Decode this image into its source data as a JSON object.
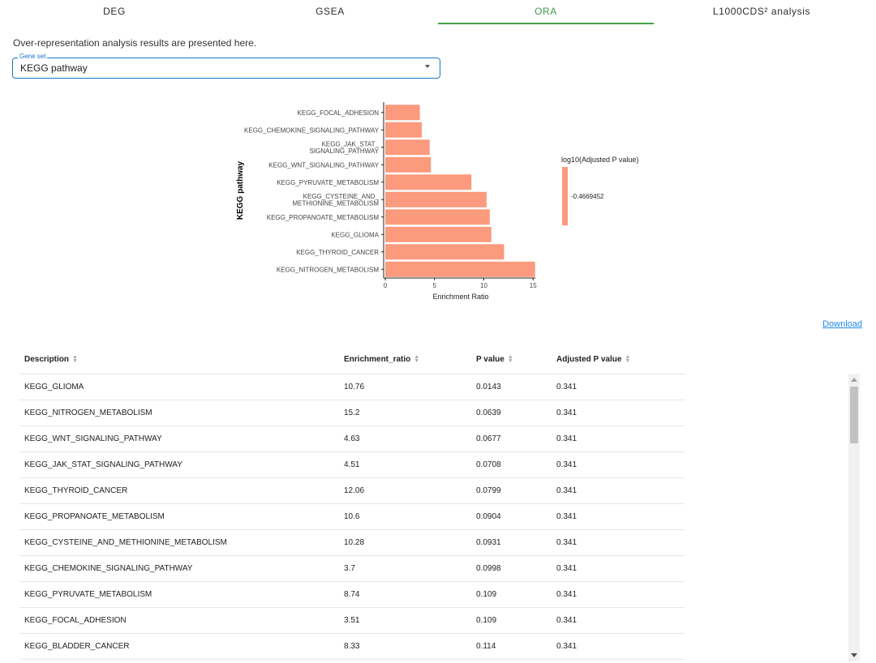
{
  "tabs": [
    {
      "label": "DEG"
    },
    {
      "label": "GSEA"
    },
    {
      "label": "ORA"
    },
    {
      "label": "L1000CDS² analysis"
    }
  ],
  "intro_text": "Over-representation analysis results are presented here.",
  "gene_set_select": {
    "label": "Gene set",
    "value": "KEGG pathway"
  },
  "colors": {
    "accent": "#43a047",
    "bar": "#fc9a7e",
    "link": "#1e88e5"
  },
  "chart_data": {
    "type": "bar",
    "orientation": "horizontal",
    "categories": [
      "KEGG_FOCAL_ADHESION",
      "KEGG_CHEMOKINE_SIGNALING_PATHWAY",
      "KEGG_JAK_STAT_\nSIGNALING_PATHWAY",
      "KEGG_WNT_SIGNALING_PATHWAY",
      "KEGG_PYRUVATE_METABOLISM",
      "KEGG_CYSTEINE_AND_\nMETHIONINE_METABOLISM",
      "KEGG_PROPANOATE_METABOLISM",
      "KEGG_GLIOMA",
      "KEGG_THYROID_CANCER",
      "KEGG_NITROGEN_METABOLISM"
    ],
    "values": [
      3.51,
      3.7,
      4.51,
      4.63,
      8.74,
      10.28,
      10.6,
      10.76,
      12.06,
      15.2
    ],
    "xlabel": "Enrichment Ratio",
    "ylabel": "KEGG pathway",
    "xlim": [
      0,
      15.2
    ],
    "xticks": [
      "0",
      "5",
      "10",
      "15"
    ],
    "legend_title": "log10(Adjusted P value)",
    "legend_value": "-0.4669452",
    "legend_placement": "right",
    "grid": false
  },
  "download_label": "Download",
  "table": {
    "columns": [
      "Description",
      "Enrichment_ratio",
      "P value",
      "Adjusted P value"
    ],
    "rows": [
      [
        "KEGG_GLIOMA",
        "10.76",
        "0.0143",
        "0.341"
      ],
      [
        "KEGG_NITROGEN_METABOLISM",
        "15.2",
        "0.0639",
        "0.341"
      ],
      [
        "KEGG_WNT_SIGNALING_PATHWAY",
        "4.63",
        "0.0677",
        "0.341"
      ],
      [
        "KEGG_JAK_STAT_SIGNALING_PATHWAY",
        "4.51",
        "0.0708",
        "0.341"
      ],
      [
        "KEGG_THYROID_CANCER",
        "12.06",
        "0.0799",
        "0.341"
      ],
      [
        "KEGG_PROPANOATE_METABOLISM",
        "10.6",
        "0.0904",
        "0.341"
      ],
      [
        "KEGG_CYSTEINE_AND_METHIONINE_METABOLISM",
        "10.28",
        "0.0931",
        "0.341"
      ],
      [
        "KEGG_CHEMOKINE_SIGNALING_PATHWAY",
        "3.7",
        "0.0998",
        "0.341"
      ],
      [
        "KEGG_PYRUVATE_METABOLISM",
        "8.74",
        "0.109",
        "0.341"
      ],
      [
        "KEGG_FOCAL_ADHESION",
        "3.51",
        "0.109",
        "0.341"
      ],
      [
        "KEGG_BLADDER_CANCER",
        "8.33",
        "0.114",
        "0.341"
      ],
      [
        "",
        "",
        "",
        ""
      ]
    ]
  }
}
